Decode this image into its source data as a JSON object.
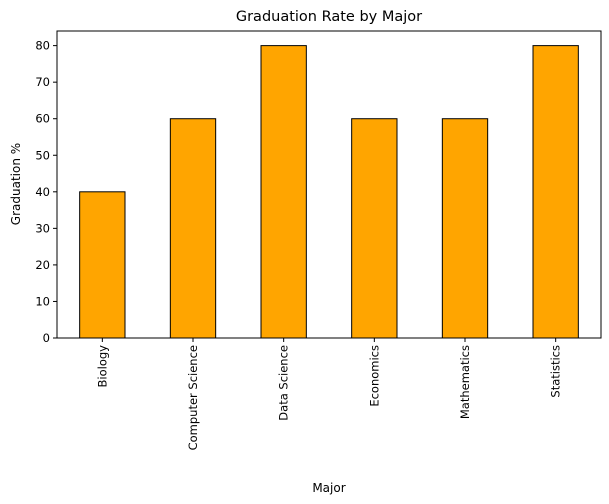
{
  "chart_data": {
    "type": "bar",
    "title": "Graduation Rate by Major",
    "xlabel": "Major",
    "ylabel": "Graduation %",
    "categories": [
      "Biology",
      "Computer Science",
      "Data Science",
      "Economics",
      "Mathematics",
      "Statistics"
    ],
    "values": [
      40,
      60,
      80,
      60,
      60,
      80
    ],
    "ylim": [
      0,
      84
    ],
    "yticks": [
      0,
      10,
      20,
      30,
      40,
      50,
      60,
      70,
      80
    ],
    "bar_color": "#FFA500",
    "bar_edge_color": "#000000",
    "grid": false,
    "legend": "none"
  }
}
